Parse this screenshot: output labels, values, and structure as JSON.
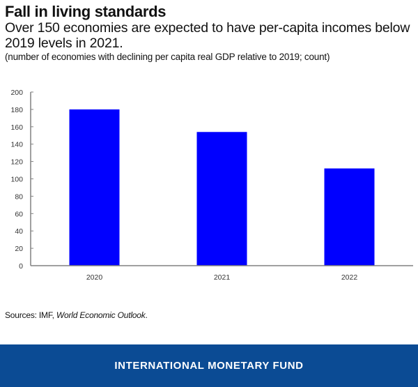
{
  "header": {
    "title": "Fall in living standards",
    "subtitle": "Over 150 economies are expected to have per-capita incomes below 2019 levels in 2021.",
    "note": "(number of economies with declining per capita real GDP relative to 2019; count)"
  },
  "chart_data": {
    "type": "bar",
    "title": "Fall in living standards",
    "subtitle": "Over 150 economies are expected to have per-capita incomes below 2019 levels in 2021.",
    "xlabel": "",
    "ylabel": "(number of economies with declining per capita real GDP relative to 2019; count)",
    "categories": [
      "2020",
      "2021",
      "2022"
    ],
    "values": [
      180,
      154,
      112
    ],
    "ylim": [
      0,
      200
    ],
    "yticks": [
      0,
      20,
      40,
      60,
      80,
      100,
      120,
      140,
      160,
      180,
      200
    ],
    "grid": false,
    "legend": "none",
    "bar_color": "#0000ff"
  },
  "source": {
    "prefix": "Sources: IMF, ",
    "italic": "World Economic Outlook",
    "suffix": "."
  },
  "footer": {
    "text": "INTERNATIONAL MONETARY FUND",
    "background": "#0b4b94"
  }
}
